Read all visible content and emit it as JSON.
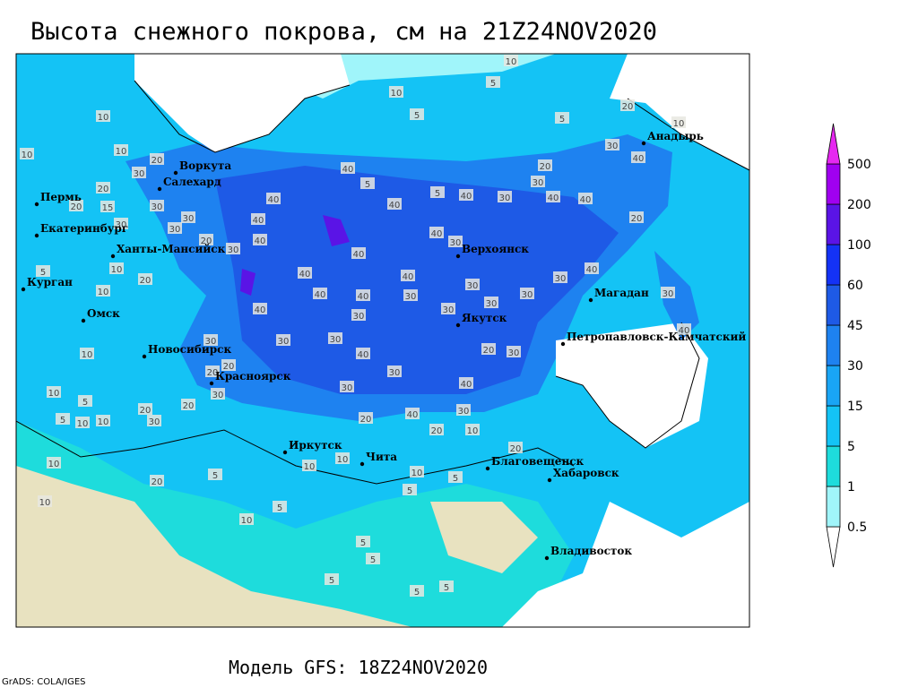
{
  "header": {
    "title": "Высота снежного покрова, см на 21Z24NOV2020"
  },
  "map": {
    "cities": [
      "Воркута",
      "Салехард",
      "Пермь",
      "Екатеринбург",
      "Ханты-Мансийск",
      "Курган",
      "Омск",
      "Новосибирск",
      "Красноярск",
      "Иркутск",
      "Чита",
      "Верхоянск",
      "Якутск",
      "Магадан",
      "Петропавловск-Камчатский",
      "Анадырь",
      "Благовещенск",
      "Хабаровск",
      "Владивосток"
    ],
    "contour_labels": [
      10,
      5,
      10,
      5,
      5,
      20,
      10,
      30,
      40,
      20,
      30,
      40,
      40,
      20,
      30,
      40,
      5,
      40,
      40,
      30,
      40,
      5,
      40,
      40,
      40,
      30,
      40,
      40,
      40,
      40,
      40,
      30,
      30,
      30,
      30,
      30,
      30,
      40,
      30,
      40,
      30,
      40,
      30,
      30,
      40,
      30,
      30,
      40,
      20,
      30,
      20,
      40,
      30,
      10,
      20,
      20,
      20,
      30,
      20,
      20,
      30,
      30,
      20,
      10,
      10,
      10,
      5,
      10,
      10,
      5,
      10,
      20,
      5,
      10,
      5,
      10,
      10,
      10,
      5,
      5,
      20,
      5,
      5,
      5,
      5,
      5,
      10,
      10,
      30,
      20,
      15,
      20,
      10,
      30,
      30,
      30,
      30,
      5,
      10,
      20,
      20,
      10
    ]
  },
  "legend": {
    "levels": [
      0.5,
      1,
      5,
      15,
      30,
      45,
      60,
      100,
      200,
      500
    ],
    "colors": [
      "#ffffff",
      "#a0f5fa",
      "#1edcdc",
      "#14c3f5",
      "#19a5f5",
      "#1e82f0",
      "#1e5ae6",
      "#1432f5",
      "#5a14e6",
      "#a000f0",
      "#e628f0"
    ]
  },
  "footer": {
    "model": "Модель GFS: 18Z24NOV2020",
    "credit": "GrADS: COLA/IGES"
  }
}
